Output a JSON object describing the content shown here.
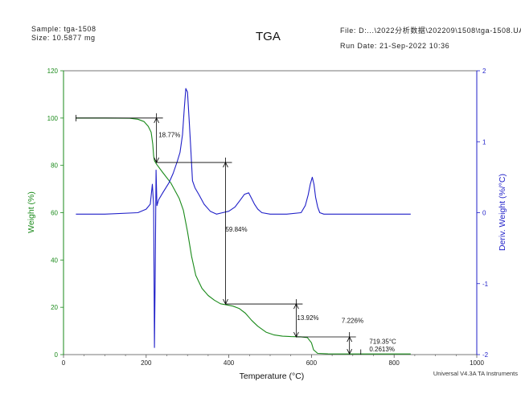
{
  "header": {
    "sample": "Sample: tga-1508",
    "size": "Size:  10.5877 mg",
    "file": "File: D:...\\2022分析数据\\202209\\1508\\tga-1508.UA",
    "run_date": "Run Date: 21-Sep-2022 10:36"
  },
  "footer": "Universal V4.3A TA Instruments",
  "colors": {
    "weight": "#1a8a1a",
    "deriv": "#1f1fc8",
    "axis": "#555555",
    "annot": "#000000"
  },
  "chart_data": {
    "type": "line",
    "title": "TGA",
    "xlabel": "Temperature (°C)",
    "ylabel": "Weight (%)",
    "y2label": "Deriv. Weight (%/°C)",
    "xlim": [
      0,
      1000
    ],
    "ylim": [
      0,
      120
    ],
    "y2lim": [
      -2,
      2
    ],
    "xticks": [
      "0",
      "200",
      "400",
      "600",
      "800",
      "1000"
    ],
    "yticks": [
      "0",
      "20",
      "40",
      "60",
      "80",
      "100",
      "120"
    ],
    "y2ticks": [
      "-2",
      "-1",
      "0",
      "1",
      "2"
    ],
    "series": [
      {
        "axis": "left",
        "x": [
          30,
          100,
          160,
          180,
          195,
          205,
          212,
          216,
          218,
          220,
          225,
          240,
          260,
          280,
          290,
          300,
          310,
          320,
          335,
          350,
          365,
          380,
          395,
          410,
          425,
          440,
          455,
          470,
          490,
          510,
          530,
          550,
          575,
          590,
          600,
          605,
          615,
          640,
          690,
          720,
          800,
          840
        ],
        "values": [
          100,
          100,
          99.9,
          99.5,
          98.5,
          96.5,
          94,
          89,
          84,
          82,
          80.5,
          77,
          72.5,
          66,
          61,
          52,
          41.5,
          33.5,
          28,
          25,
          23,
          21.5,
          21,
          20.5,
          19.5,
          17.5,
          14.5,
          12,
          9.5,
          8.3,
          7.8,
          7.6,
          7.5,
          7.2,
          5,
          2,
          0.5,
          0.3,
          0.26,
          0.26,
          0.26,
          0.26
        ]
      },
      {
        "axis": "right",
        "x": [
          30,
          100,
          180,
          200,
          210,
          215,
          218,
          220,
          222,
          224,
          226,
          230,
          240,
          255,
          265,
          275,
          282,
          288,
          292,
          296,
          300,
          304,
          308,
          312,
          318,
          328,
          340,
          355,
          370,
          385,
          400,
          415,
          428,
          438,
          448,
          455,
          462,
          470,
          480,
          500,
          540,
          575,
          585,
          592,
          597,
          602,
          606,
          610,
          615,
          620,
          630,
          700,
          800,
          840
        ],
        "values": [
          -0.02,
          -0.02,
          0.0,
          0.05,
          0.12,
          0.4,
          0.1,
          -1.9,
          -0.8,
          0.6,
          0.1,
          0.18,
          0.28,
          0.42,
          0.55,
          0.72,
          0.85,
          1.1,
          1.45,
          1.75,
          1.7,
          1.3,
          0.9,
          0.45,
          0.35,
          0.25,
          0.12,
          0.02,
          -0.02,
          0.0,
          0.02,
          0.08,
          0.18,
          0.26,
          0.28,
          0.2,
          0.12,
          0.05,
          0.0,
          -0.02,
          -0.02,
          0.0,
          0.1,
          0.25,
          0.4,
          0.5,
          0.4,
          0.22,
          0.08,
          0.0,
          -0.02,
          -0.02,
          -0.02,
          -0.02
        ]
      }
    ],
    "annotations": [
      {
        "text": "18.77%",
        "x": 230,
        "y": 92
      },
      {
        "text": "59.84%",
        "x": 392,
        "y": 52
      },
      {
        "text": "13.92%",
        "x": 565,
        "y": 14.6
      },
      {
        "text": "7.226%",
        "x": 673,
        "y": 13.5
      },
      {
        "text": "719.35°C",
        "x": 740,
        "y": 4.6
      },
      {
        "text": "0.2613%",
        "x": 740,
        "y": 1.4
      }
    ],
    "steps": [
      {
        "start": [
          30,
          100
        ],
        "end": [
          225,
          100
        ],
        "marker_x": 225,
        "drop_to": 81.23
      },
      {
        "start": [
          225,
          81.23
        ],
        "end": [
          392,
          81.23
        ],
        "marker_x": 392,
        "drop_to": 21.39
      },
      {
        "start": [
          392,
          21.39
        ],
        "end": [
          563,
          21.39
        ],
        "marker_x": 563,
        "drop_to": 7.47
      },
      {
        "start": [
          563,
          7.47
        ],
        "end": [
          692,
          7.47
        ],
        "marker_x": 692,
        "drop_to": 0.26
      }
    ]
  }
}
